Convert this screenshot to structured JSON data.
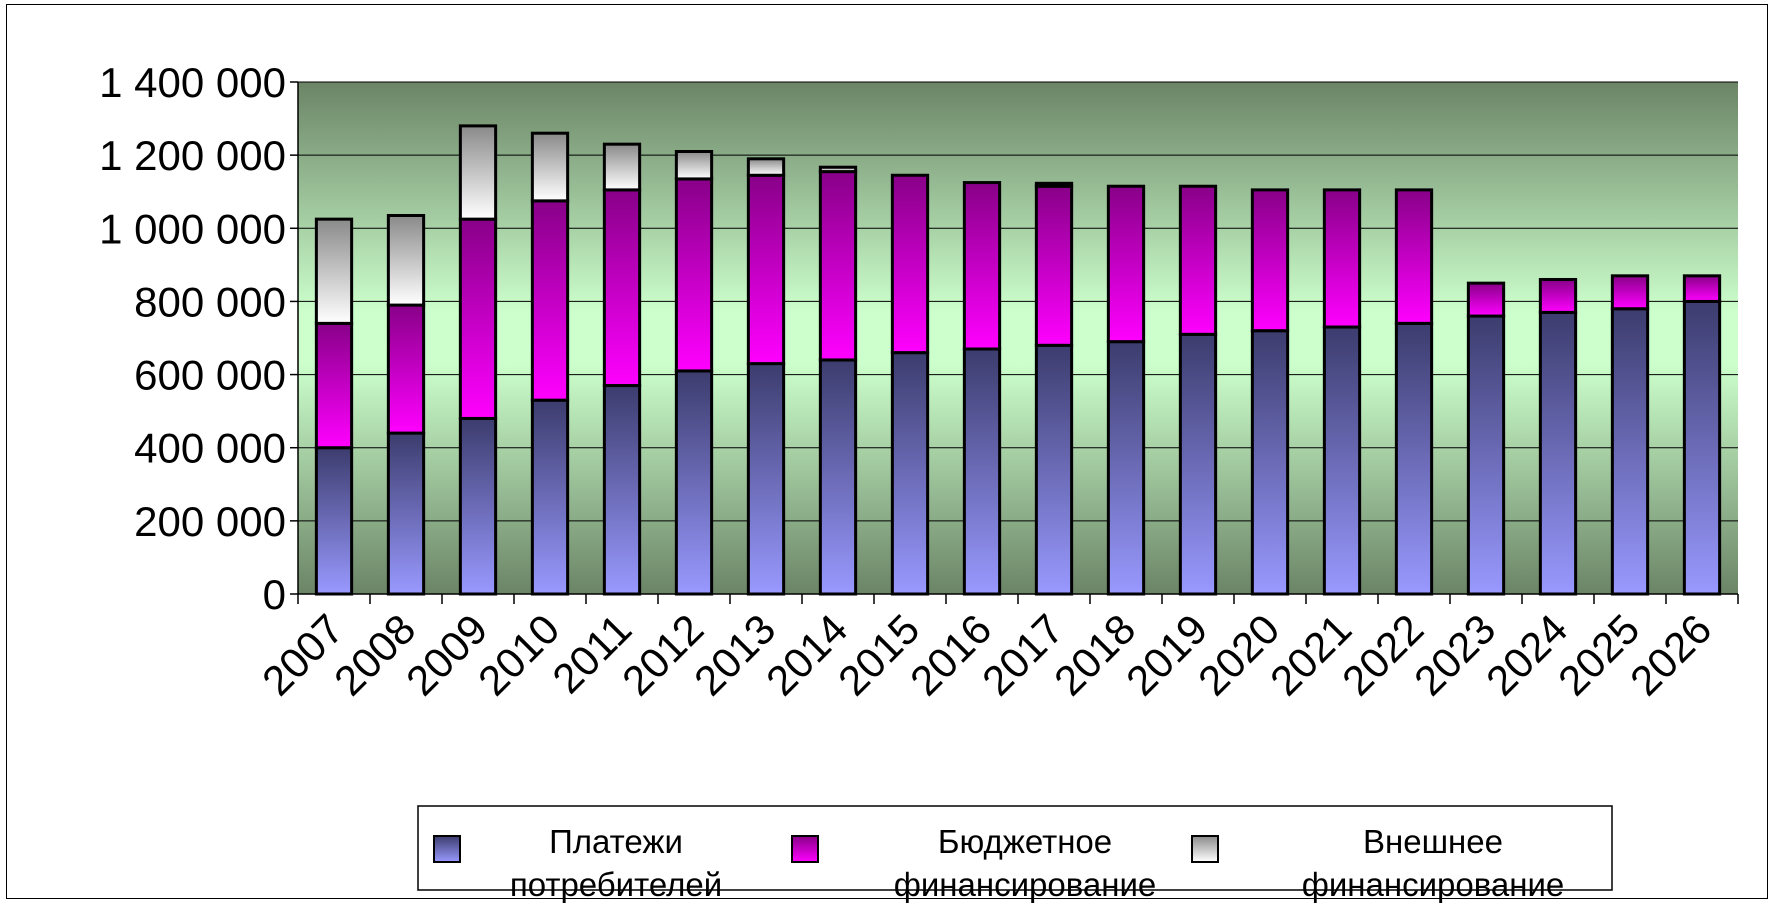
{
  "chart_data": {
    "type": "bar",
    "stacked": true,
    "categories": [
      "2007",
      "2008",
      "2009",
      "2010",
      "2011",
      "2012",
      "2013",
      "2014",
      "2015",
      "2016",
      "2017",
      "2018",
      "2019",
      "2020",
      "2021",
      "2022",
      "2023",
      "2024",
      "2025",
      "2026"
    ],
    "series": [
      {
        "name": "Платежи потребителей",
        "color": "#9999ff",
        "values": [
          400000,
          440000,
          480000,
          530000,
          570000,
          610000,
          630000,
          640000,
          660000,
          670000,
          680000,
          690000,
          710000,
          720000,
          730000,
          740000,
          760000,
          770000,
          780000,
          800000
        ]
      },
      {
        "name": "Бюджетное финансирование",
        "color": "#ff00ff",
        "values": [
          340000,
          350000,
          545000,
          545000,
          535000,
          525000,
          515000,
          515000,
          485000,
          455000,
          435000,
          425000,
          405000,
          385000,
          375000,
          365000,
          90000,
          90000,
          90000,
          70000
        ]
      },
      {
        "name": "Внешнее финансирование",
        "color": "#ffffff",
        "values": [
          285000,
          245000,
          255000,
          185000,
          125000,
          75000,
          45000,
          12000,
          0,
          0,
          8000,
          0,
          0,
          0,
          0,
          0,
          0,
          0,
          0,
          0
        ]
      }
    ],
    "ylim": [
      0,
      1400000
    ],
    "yticks": [
      0,
      200000,
      400000,
      600000,
      800000,
      1000000,
      1200000,
      1400000
    ],
    "ytick_labels": [
      "0",
      "200 000",
      "400 000",
      "600 000",
      "800 000",
      "1 000 000",
      "1 200 000",
      "1 400 000"
    ],
    "grid": true,
    "legend_position": "bottom",
    "legend": [
      {
        "line1": "Платежи",
        "line2": "потребителей"
      },
      {
        "line1": "Бюджетное",
        "line2": "финансирование"
      },
      {
        "line1": "Внешнее",
        "line2": "финансирование"
      }
    ]
  }
}
